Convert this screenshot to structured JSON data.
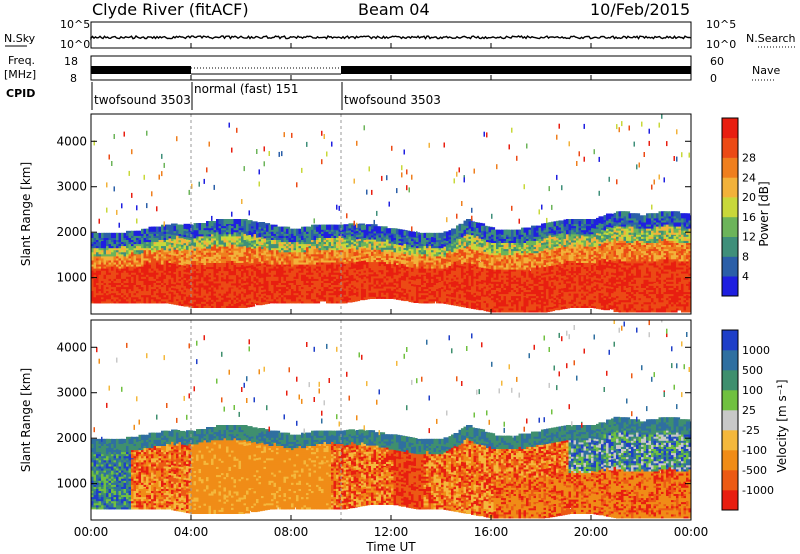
{
  "header": {
    "station": "Clyde River (fitACF)",
    "beam": "Beam 04",
    "date": "10/Feb/2015"
  },
  "strips": {
    "nsky_label": "N.Sky",
    "nsky_ticks": [
      "10^5",
      "10^0"
    ],
    "nsearch_label": "N.Search",
    "freq_label_1": "Freq.",
    "freq_label_2": "[MHz]",
    "freq_ticks": [
      "18",
      "8"
    ],
    "nave_label": "Nave",
    "nave_ticks": [
      "60",
      "0"
    ],
    "cpid_label": "CPID",
    "cpid_segments": [
      {
        "label": "twofsound 3503",
        "start_hour": 0
      },
      {
        "label": "normal (fast) 151",
        "start_hour": 4
      },
      {
        "label": "twofsound 3503",
        "start_hour": 10
      }
    ]
  },
  "panels": {
    "ylabel": "Slant Range [km]",
    "xlabel": "Time UT",
    "power_title": "Power [dB]",
    "velocity_title": "Velocity [m s⁻¹]"
  },
  "colors": {
    "power": [
      "#1f1fe0",
      "#2b5fa8",
      "#3f8f7a",
      "#6cb45a",
      "#c8d83a",
      "#f2b23a",
      "#ef7f1e",
      "#ec4a15",
      "#e81e10"
    ],
    "velocity": [
      "#e81e10",
      "#ec5a14",
      "#f08c17",
      "#f4b83c",
      "#c8c8c8",
      "#70c040",
      "#3f8f6e",
      "#2f6fa0",
      "#1f3fc8"
    ]
  },
  "chart_data": {
    "type": "heatmap",
    "x_ticks": [
      "00:00",
      "04:00",
      "08:00",
      "12:00",
      "16:00",
      "20:00",
      "00:00"
    ],
    "y_ticks": [
      "1000",
      "2000",
      "3000",
      "4000"
    ],
    "xlim": [
      0,
      24
    ],
    "ylim": [
      200,
      4600
    ],
    "mode_change_hours": [
      4,
      10
    ],
    "power_ticks": [
      "4",
      "8",
      "12",
      "16",
      "20",
      "24",
      "28"
    ],
    "velocity_ticks": [
      "-1000",
      "-500",
      "-100",
      "-25",
      "25",
      "100",
      "500",
      "1000"
    ],
    "band": {
      "hours": [
        0,
        1,
        2,
        3,
        4,
        5,
        6,
        7,
        8,
        9,
        10,
        11,
        12,
        13,
        14,
        15,
        16,
        17,
        18,
        19,
        20,
        21,
        22,
        23,
        24
      ],
      "lower_km": [
        700,
        700,
        700,
        700,
        600,
        600,
        600,
        700,
        700,
        700,
        700,
        800,
        800,
        700,
        700,
        600,
        500,
        500,
        500,
        600,
        600,
        500,
        500,
        500,
        500
      ],
      "upper_km": [
        1700,
        1700,
        1800,
        1900,
        1900,
        2000,
        2000,
        1900,
        1800,
        1900,
        1900,
        1900,
        1800,
        1700,
        1700,
        2000,
        1800,
        1800,
        1900,
        2000,
        2000,
        2200,
        2100,
        2200,
        2100
      ]
    }
  }
}
